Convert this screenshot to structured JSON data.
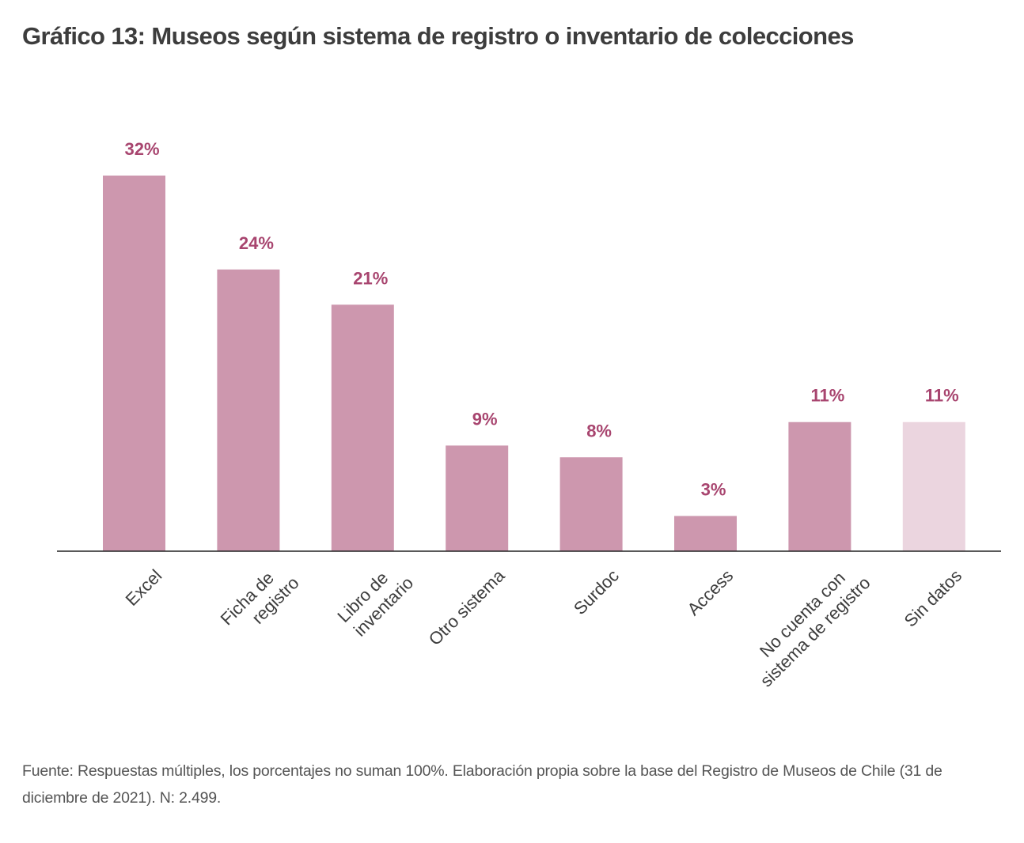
{
  "title": "Gráfico 13: Museos según sistema de registro o inventario de colecciones",
  "source_note": "Fuente: Respuestas múltiples, los porcentajes no suman 100%. Elaboración propia sobre la base del Registro de Museos de Chile (31 de diciembre de 2021). N: 2.499.",
  "colors": {
    "bar": "#cd97ae",
    "bar_highlight": "#ebd5df",
    "label": "#a8456f",
    "axis": "#222222",
    "category_text": "#3d3d3d"
  },
  "chart_data": {
    "type": "bar",
    "title": "Gráfico 13: Museos según sistema de registro o inventario de colecciones",
    "xlabel": "",
    "ylabel": "",
    "ylim": [
      0,
      35
    ],
    "grid": false,
    "legend": "none",
    "categories": [
      [
        "Excel"
      ],
      [
        "Ficha de",
        "registro"
      ],
      [
        "Libro de",
        "inventario"
      ],
      [
        "Otro sistema"
      ],
      [
        "Surdoc"
      ],
      [
        "Access"
      ],
      [
        "No cuenta con",
        "sistema de registro"
      ],
      [
        "Sin datos"
      ]
    ],
    "values": [
      32,
      24,
      21,
      9,
      8,
      3,
      11,
      11
    ],
    "value_labels": [
      "32%",
      "24%",
      "21%",
      "9%",
      "8%",
      "3%",
      "11%",
      "11%"
    ],
    "light_bars": [
      7
    ]
  }
}
